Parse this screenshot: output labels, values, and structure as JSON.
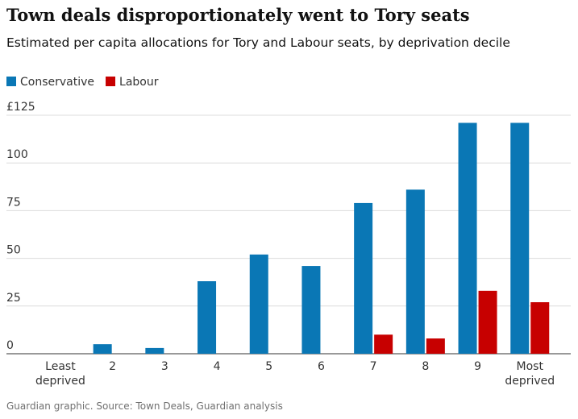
{
  "chart_data": {
    "type": "bar",
    "title": "Town deals disproportionately went to Tory seats",
    "subtitle": "Estimated per capita allocations for Tory and Labour seats, by deprivation decile",
    "source": "Guardian graphic. Source: Town Deals, Guardian analysis",
    "categories": [
      "Least deprived",
      "2",
      "3",
      "4",
      "5",
      "6",
      "7",
      "8",
      "9",
      "Most deprived"
    ],
    "series": [
      {
        "name": "Conservative",
        "color": "#0a77b5",
        "values": [
          0,
          5,
          3,
          38,
          52,
          46,
          79,
          86,
          121,
          121
        ]
      },
      {
        "name": "Labour",
        "color": "#c70000",
        "values": [
          0,
          0,
          0,
          0,
          0,
          0,
          10,
          8,
          33,
          27
        ]
      }
    ],
    "ylim": [
      0,
      125
    ],
    "yticks": [
      0,
      25,
      50,
      75,
      100,
      {
        "value": 125,
        "label": "£125"
      }
    ],
    "grid": true
  }
}
